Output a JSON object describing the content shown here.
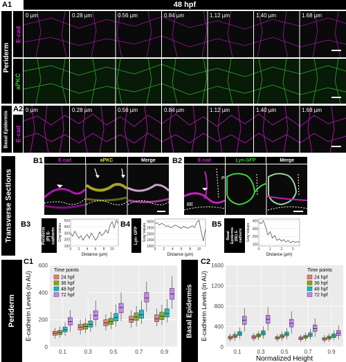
{
  "header": {
    "title": "48 hpf"
  },
  "panels": {
    "a1": "A1",
    "a2": "A2",
    "b1": "B1",
    "b2": "B2",
    "b3": "B3",
    "b4": "B4",
    "b5": "B5",
    "c1": "C1",
    "c2": "C2"
  },
  "side_labels": {
    "periderm": "Periderm",
    "basal_epidermis": "Basal Epidermis",
    "transverse_sections": "Transverse Sections",
    "periderm_c": "Periderm",
    "basal_epidermis_c": "Basal Epidermis"
  },
  "channel_labels": {
    "ecad": "E-cad",
    "apkc": "aPKC",
    "ecad2": "E-cad"
  },
  "depths": [
    "0 µm",
    "0.28 µm",
    "0.56 µm",
    "0.84 µm",
    "1.12 µm",
    "1.40 µm",
    "1.68 µm"
  ],
  "b1_headers": [
    "E-cad",
    "aPKC",
    "Merge"
  ],
  "b2_headers": [
    "E-cad",
    "Lyn-GFP",
    "Merge"
  ],
  "b2_annotations": {
    "p": "P",
    "be": "BE"
  },
  "colors": {
    "magenta": "#d21fd2",
    "green": "#2fcf2f",
    "yellow": "#e3e33a"
  },
  "profile_labels": {
    "b3_side": "Periderm (P) E-cadherin",
    "b4_side": "Lyn- GFP",
    "b5_side": "Basal Epidermis (BE) E-cadherin",
    "ylabel": "Gray Values",
    "xlabel": "Distance (µm)"
  },
  "chart_data": [
    {
      "type": "line",
      "panel": "B3",
      "xlabel": "Distance (µm)",
      "ylabel": "Gray Values",
      "xticks": [
        "0",
        "2",
        "4",
        "6",
        "8",
        "10"
      ],
      "yticks": [
        "100",
        "200",
        "300",
        "400",
        "500"
      ],
      "xlim": [
        0,
        11.5
      ],
      "ylim": [
        100,
        520
      ],
      "x": [
        0,
        0.5,
        1,
        1.5,
        2,
        2.5,
        3,
        3.5,
        4,
        4.5,
        5,
        5.5,
        6,
        6.5,
        7,
        7.5,
        8,
        8.5,
        9,
        9.5,
        10,
        10.5,
        11,
        11.5
      ],
      "y": [
        300,
        250,
        330,
        270,
        220,
        260,
        190,
        240,
        280,
        220,
        300,
        250,
        190,
        230,
        320,
        260,
        290,
        350,
        300,
        420,
        480,
        380,
        500,
        450
      ]
    },
    {
      "type": "line",
      "panel": "B4",
      "xlabel": "Distance (µm)",
      "ylabel": "Gray Values",
      "xticks": [
        "0",
        "2",
        "4",
        "6",
        "8",
        "10"
      ],
      "yticks": [
        "1000",
        "1500",
        "2000",
        "2500",
        "3000"
      ],
      "xlim": [
        0,
        11.5
      ],
      "ylim": [
        1000,
        3200
      ],
      "x": [
        0,
        0.5,
        1,
        1.5,
        2,
        2.5,
        3,
        3.5,
        4,
        4.5,
        5,
        5.5,
        6,
        6.5,
        7,
        7.5,
        8,
        8.5,
        9,
        9.5,
        10,
        10.5,
        11,
        11.5
      ],
      "y": [
        2800,
        2900,
        2700,
        2850,
        2750,
        2600,
        2650,
        2500,
        2550,
        2700,
        2650,
        2500,
        2450,
        2600,
        2500,
        2450,
        2550,
        2650,
        2500,
        2900,
        3100,
        2200,
        1400,
        2400
      ]
    },
    {
      "type": "line",
      "panel": "B5",
      "xlabel": "Distance (µm)",
      "ylabel": "Gray Values",
      "xticks": [
        "0",
        "1",
        "2",
        "3"
      ],
      "yticks": [
        "100",
        "200",
        "300",
        "400"
      ],
      "xlim": [
        0,
        3.6
      ],
      "ylim": [
        80,
        420
      ],
      "x": [
        0,
        0.2,
        0.4,
        0.6,
        0.8,
        1,
        1.2,
        1.4,
        1.6,
        1.8,
        2,
        2.2,
        2.4,
        2.6,
        2.8,
        3,
        3.2,
        3.4,
        3.6
      ],
      "y": [
        380,
        360,
        400,
        320,
        220,
        260,
        180,
        210,
        150,
        170,
        140,
        160,
        130,
        150,
        120,
        140,
        125,
        135,
        130
      ]
    },
    {
      "type": "box",
      "panel": "C1",
      "ylabel": "E-cadherin Levels (in AU)",
      "xlabel": "",
      "legend_title": "Time points",
      "legend_position": "top-left",
      "categories": [
        "0.1",
        "0.3",
        "0.5",
        "0.7",
        "0.9"
      ],
      "ylim": [
        0,
        600
      ],
      "yticks": [
        "0",
        "200",
        "400",
        "600"
      ],
      "series": [
        {
          "name": "24 hpf",
          "color": "#f8766d",
          "boxes": [
            [
              60,
              85,
              100,
              115,
              140
            ],
            [
              90,
              125,
              145,
              165,
              200
            ],
            [
              120,
              155,
              175,
              200,
              240
            ],
            [
              140,
              180,
              200,
              225,
              270
            ],
            [
              150,
              185,
              205,
              235,
              280
            ]
          ]
        },
        {
          "name": "36 hpf",
          "color": "#7cae00",
          "boxes": [
            [
              65,
              90,
              105,
              120,
              150
            ],
            [
              100,
              130,
              150,
              170,
              210
            ],
            [
              130,
              165,
              185,
              210,
              255
            ],
            [
              150,
              195,
              220,
              250,
              300
            ],
            [
              160,
              200,
              225,
              255,
              310
            ]
          ]
        },
        {
          "name": "48 hpf",
          "color": "#00bfc4",
          "boxes": [
            [
              80,
              110,
              125,
              145,
              180
            ],
            [
              110,
              145,
              165,
              190,
              240
            ],
            [
              150,
              190,
              215,
              245,
              310
            ],
            [
              170,
              210,
              235,
              270,
              340
            ],
            [
              180,
              220,
              245,
              280,
              350
            ]
          ]
        },
        {
          "name": "72 hpf",
          "color": "#c77cff",
          "boxes": [
            [
              110,
              160,
              185,
              215,
              270
            ],
            [
              150,
              200,
              230,
              265,
              340
            ],
            [
              190,
              250,
              290,
              320,
              400
            ],
            [
              260,
              330,
              360,
              400,
              480
            ],
            [
              280,
              350,
              390,
              430,
              520
            ]
          ]
        }
      ]
    },
    {
      "type": "box",
      "panel": "C2",
      "ylabel": "E-cadherin Levels (in AU)",
      "xlabel": "Normalized Height",
      "legend_title": "Time points",
      "legend_position": "top-right",
      "categories": [
        "0.1",
        "0.3",
        "0.5",
        "0.7",
        "0.9"
      ],
      "ylim": [
        0,
        1600
      ],
      "yticks": [
        "0",
        "400",
        "800",
        "1200",
        "1600"
      ],
      "series": [
        {
          "name": "24 hpf",
          "color": "#f8766d",
          "boxes": [
            [
              100,
              150,
              180,
              210,
              260
            ],
            [
              110,
              160,
              190,
              220,
              270
            ],
            [
              100,
              150,
              175,
              200,
              250
            ],
            [
              90,
              140,
              165,
              195,
              240
            ],
            [
              80,
              130,
              155,
              180,
              230
            ]
          ]
        },
        {
          "name": "36 hpf",
          "color": "#7cae00",
          "boxes": [
            [
              120,
              180,
              210,
              245,
              300
            ],
            [
              130,
              190,
              220,
              255,
              310
            ],
            [
              120,
              175,
              205,
              240,
              300
            ],
            [
              110,
              165,
              195,
              225,
              280
            ],
            [
              100,
              150,
              180,
              210,
              260
            ]
          ]
        },
        {
          "name": "48 hpf",
          "color": "#00bfc4",
          "boxes": [
            [
              150,
              220,
              260,
              300,
              380
            ],
            [
              160,
              230,
              270,
              315,
              400
            ],
            [
              150,
              215,
              250,
              290,
              370
            ],
            [
              140,
              200,
              235,
              275,
              350
            ],
            [
              130,
              180,
              215,
              255,
              320
            ]
          ]
        },
        {
          "name": "72 hpf",
          "color": "#c77cff",
          "boxes": [
            [
              300,
              440,
              520,
              600,
              760
            ],
            [
              320,
              460,
              540,
              620,
              780
            ],
            [
              260,
              390,
              460,
              540,
              700
            ],
            [
              200,
              300,
              360,
              430,
              560
            ],
            [
              150,
              220,
              270,
              320,
              420
            ]
          ]
        }
      ]
    }
  ]
}
